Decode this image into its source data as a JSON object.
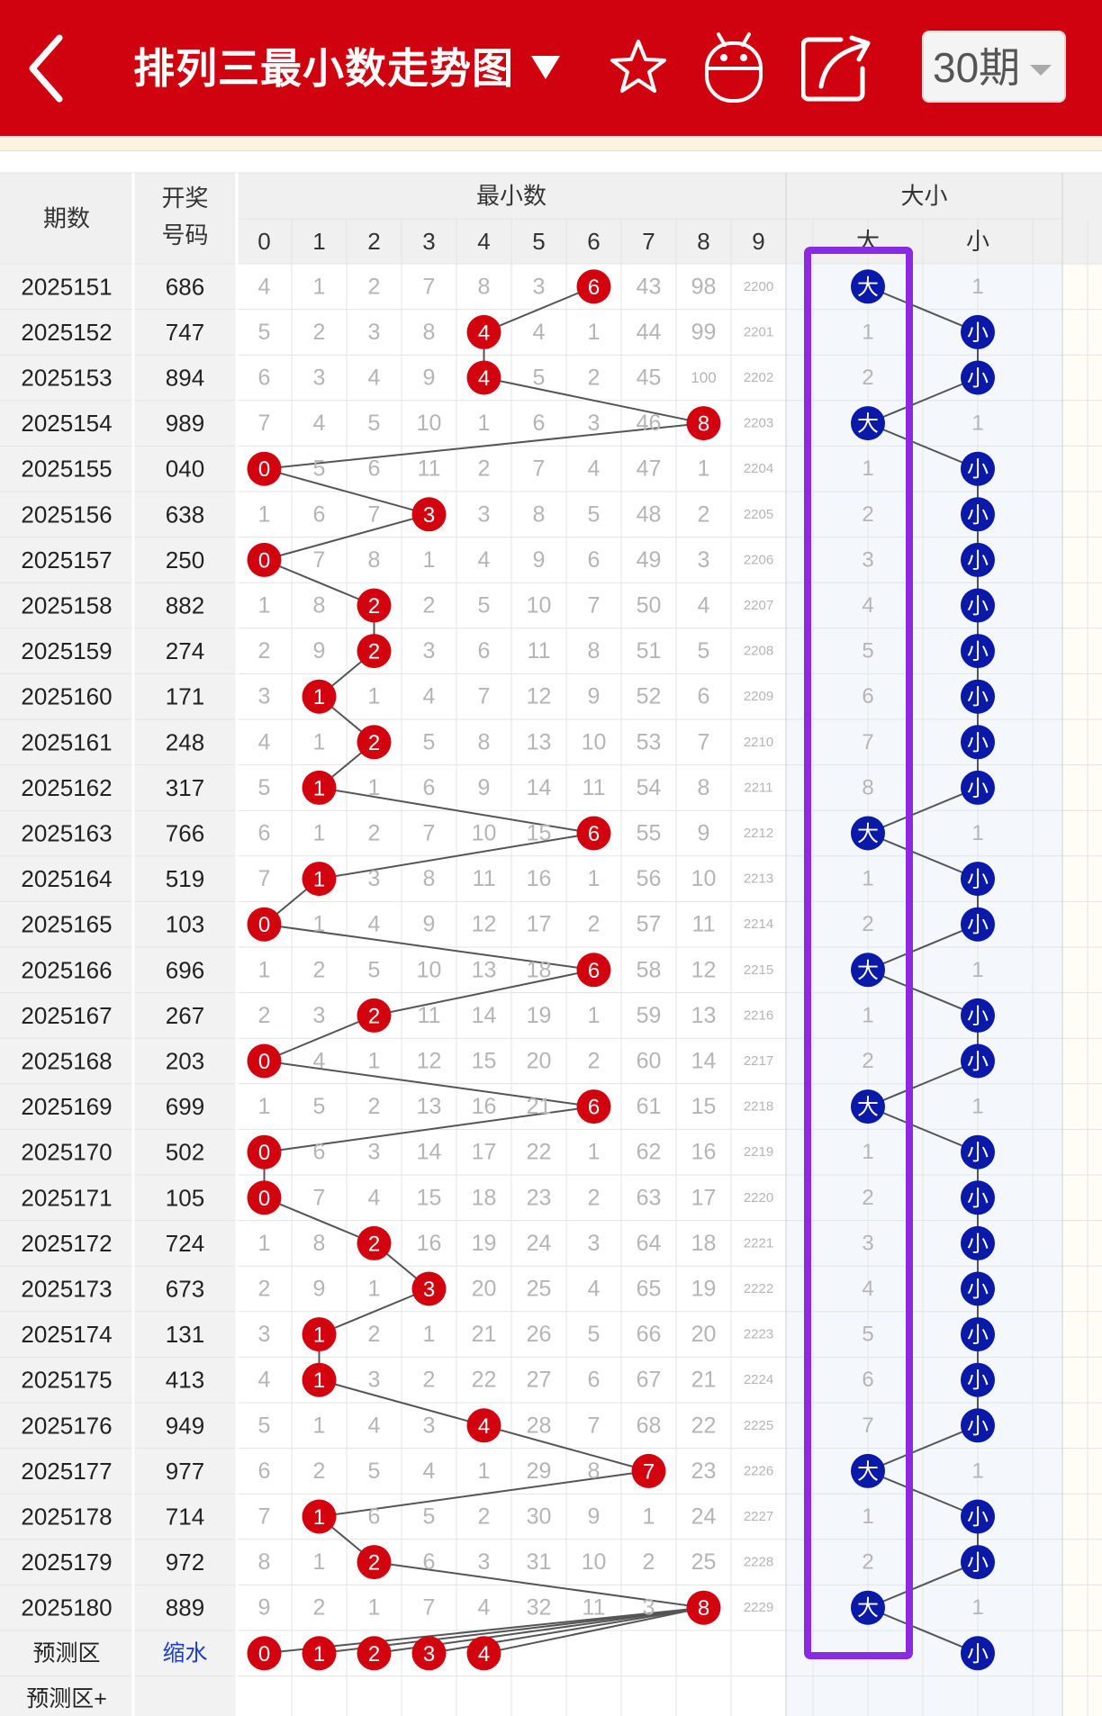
{
  "header": {
    "back_icon": "chevron-left-icon",
    "title": "排列三最小数走势图",
    "title_caret_icon": "caret-down-icon",
    "favorite_icon": "star-icon",
    "robot_icon": "android-robot-icon",
    "share_icon": "share-icon",
    "period_selector": "30期",
    "bg_color": "#d0020f"
  },
  "table": {
    "col_issue": "期数",
    "col_number_line1": "开奖",
    "col_number_line2": "号码",
    "group_min": "最小数",
    "group_size": "大小",
    "digits": [
      "0",
      "1",
      "2",
      "3",
      "4",
      "5",
      "6",
      "7",
      "8",
      "9"
    ],
    "size_labels": [
      "大",
      "小"
    ],
    "rows": [
      {
        "issue": "2025151",
        "num": "686",
        "cells": [
          "4",
          "1",
          "2",
          "7",
          "8",
          "3",
          "6",
          "43",
          "98",
          "2200"
        ],
        "size": [
          "大",
          "1"
        ]
      },
      {
        "issue": "2025152",
        "num": "747",
        "cells": [
          "5",
          "2",
          "3",
          "8",
          "4",
          "4",
          "1",
          "44",
          "99",
          "2201"
        ],
        "size": [
          "1",
          "小"
        ]
      },
      {
        "issue": "2025153",
        "num": "894",
        "cells": [
          "6",
          "3",
          "4",
          "9",
          "4",
          "5",
          "2",
          "45",
          "100",
          "2202"
        ],
        "size": [
          "2",
          "小"
        ]
      },
      {
        "issue": "2025154",
        "num": "989",
        "cells": [
          "7",
          "4",
          "5",
          "10",
          "1",
          "6",
          "3",
          "46",
          "8",
          "2203"
        ],
        "size": [
          "大",
          "1"
        ]
      },
      {
        "issue": "2025155",
        "num": "040",
        "cells": [
          "0",
          "5",
          "6",
          "11",
          "2",
          "7",
          "4",
          "47",
          "1",
          "2204"
        ],
        "size": [
          "1",
          "小"
        ]
      },
      {
        "issue": "2025156",
        "num": "638",
        "cells": [
          "1",
          "6",
          "7",
          "3",
          "3",
          "8",
          "5",
          "48",
          "2",
          "2205"
        ],
        "size": [
          "2",
          "小"
        ]
      },
      {
        "issue": "2025157",
        "num": "250",
        "cells": [
          "0",
          "7",
          "8",
          "1",
          "4",
          "9",
          "6",
          "49",
          "3",
          "2206"
        ],
        "size": [
          "3",
          "小"
        ]
      },
      {
        "issue": "2025158",
        "num": "882",
        "cells": [
          "1",
          "8",
          "2",
          "2",
          "5",
          "10",
          "7",
          "50",
          "4",
          "2207"
        ],
        "size": [
          "4",
          "小"
        ]
      },
      {
        "issue": "2025159",
        "num": "274",
        "cells": [
          "2",
          "9",
          "2",
          "3",
          "6",
          "11",
          "8",
          "51",
          "5",
          "2208"
        ],
        "size": [
          "5",
          "小"
        ]
      },
      {
        "issue": "2025160",
        "num": "171",
        "cells": [
          "3",
          "1",
          "1",
          "4",
          "7",
          "12",
          "9",
          "52",
          "6",
          "2209"
        ],
        "size": [
          "6",
          "小"
        ]
      },
      {
        "issue": "2025161",
        "num": "248",
        "cells": [
          "4",
          "1",
          "2",
          "5",
          "8",
          "13",
          "10",
          "53",
          "7",
          "2210"
        ],
        "size": [
          "7",
          "小"
        ]
      },
      {
        "issue": "2025162",
        "num": "317",
        "cells": [
          "5",
          "1",
          "1",
          "6",
          "9",
          "14",
          "11",
          "54",
          "8",
          "2211"
        ],
        "size": [
          "8",
          "小"
        ]
      },
      {
        "issue": "2025163",
        "num": "766",
        "cells": [
          "6",
          "1",
          "2",
          "7",
          "10",
          "15",
          "6",
          "55",
          "9",
          "2212"
        ],
        "size": [
          "大",
          "1"
        ]
      },
      {
        "issue": "2025164",
        "num": "519",
        "cells": [
          "7",
          "1",
          "3",
          "8",
          "11",
          "16",
          "1",
          "56",
          "10",
          "2213"
        ],
        "size": [
          "1",
          "小"
        ]
      },
      {
        "issue": "2025165",
        "num": "103",
        "cells": [
          "0",
          "1",
          "4",
          "9",
          "12",
          "17",
          "2",
          "57",
          "11",
          "2214"
        ],
        "size": [
          "2",
          "小"
        ]
      },
      {
        "issue": "2025166",
        "num": "696",
        "cells": [
          "1",
          "2",
          "5",
          "10",
          "13",
          "18",
          "6",
          "58",
          "12",
          "2215"
        ],
        "size": [
          "大",
          "1"
        ]
      },
      {
        "issue": "2025167",
        "num": "267",
        "cells": [
          "2",
          "3",
          "2",
          "11",
          "14",
          "19",
          "1",
          "59",
          "13",
          "2216"
        ],
        "size": [
          "1",
          "小"
        ]
      },
      {
        "issue": "2025168",
        "num": "203",
        "cells": [
          "0",
          "4",
          "1",
          "12",
          "15",
          "20",
          "2",
          "60",
          "14",
          "2217"
        ],
        "size": [
          "2",
          "小"
        ]
      },
      {
        "issue": "2025169",
        "num": "699",
        "cells": [
          "1",
          "5",
          "2",
          "13",
          "16",
          "21",
          "6",
          "61",
          "15",
          "2218"
        ],
        "size": [
          "大",
          "1"
        ]
      },
      {
        "issue": "2025170",
        "num": "502",
        "cells": [
          "0",
          "6",
          "3",
          "14",
          "17",
          "22",
          "1",
          "62",
          "16",
          "2219"
        ],
        "size": [
          "1",
          "小"
        ]
      },
      {
        "issue": "2025171",
        "num": "105",
        "cells": [
          "0",
          "7",
          "4",
          "15",
          "18",
          "23",
          "2",
          "63",
          "17",
          "2220"
        ],
        "size": [
          "2",
          "小"
        ]
      },
      {
        "issue": "2025172",
        "num": "724",
        "cells": [
          "1",
          "8",
          "2",
          "16",
          "19",
          "24",
          "3",
          "64",
          "18",
          "2221"
        ],
        "size": [
          "3",
          "小"
        ]
      },
      {
        "issue": "2025173",
        "num": "673",
        "cells": [
          "2",
          "9",
          "1",
          "3",
          "20",
          "25",
          "4",
          "65",
          "19",
          "2222"
        ],
        "size": [
          "4",
          "小"
        ]
      },
      {
        "issue": "2025174",
        "num": "131",
        "cells": [
          "3",
          "1",
          "2",
          "1",
          "21",
          "26",
          "5",
          "66",
          "20",
          "2223"
        ],
        "size": [
          "5",
          "小"
        ]
      },
      {
        "issue": "2025175",
        "num": "413",
        "cells": [
          "4",
          "1",
          "3",
          "2",
          "22",
          "27",
          "6",
          "67",
          "21",
          "2224"
        ],
        "size": [
          "6",
          "小"
        ]
      },
      {
        "issue": "2025176",
        "num": "949",
        "cells": [
          "5",
          "1",
          "4",
          "3",
          "4",
          "28",
          "7",
          "68",
          "22",
          "2225"
        ],
        "size": [
          "7",
          "小"
        ]
      },
      {
        "issue": "2025177",
        "num": "977",
        "cells": [
          "6",
          "2",
          "5",
          "4",
          "1",
          "29",
          "8",
          "7",
          "23",
          "2226"
        ],
        "size": [
          "大",
          "1"
        ]
      },
      {
        "issue": "2025178",
        "num": "714",
        "cells": [
          "7",
          "1",
          "6",
          "5",
          "2",
          "30",
          "9",
          "1",
          "24",
          "2227"
        ],
        "size": [
          "1",
          "小"
        ]
      },
      {
        "issue": "2025179",
        "num": "972",
        "cells": [
          "8",
          "1",
          "2",
          "6",
          "3",
          "31",
          "10",
          "2",
          "25",
          "2228"
        ],
        "size": [
          "2",
          "小"
        ]
      },
      {
        "issue": "2025180",
        "num": "889",
        "cells": [
          "9",
          "2",
          "1",
          "7",
          "4",
          "32",
          "11",
          "3",
          "8",
          "2229"
        ],
        "size": [
          "大",
          "1"
        ]
      }
    ],
    "minimum_per_row": [
      6,
      4,
      4,
      8,
      0,
      3,
      0,
      2,
      2,
      1,
      2,
      1,
      6,
      1,
      0,
      6,
      2,
      0,
      6,
      0,
      0,
      2,
      3,
      1,
      1,
      4,
      7,
      1,
      2,
      8
    ],
    "predict_label": "预测区",
    "predict_link": "缩水",
    "predict_balls": [
      "0",
      "1",
      "2",
      "3",
      "4"
    ],
    "predict_size": "小",
    "predict_plus_label": "预测区+"
  },
  "colors": {
    "ball_red": "#d2020f",
    "ball_blue": "#0a19a8",
    "highlight": "#8a2be2",
    "miss_text": "#b5b5b5"
  }
}
